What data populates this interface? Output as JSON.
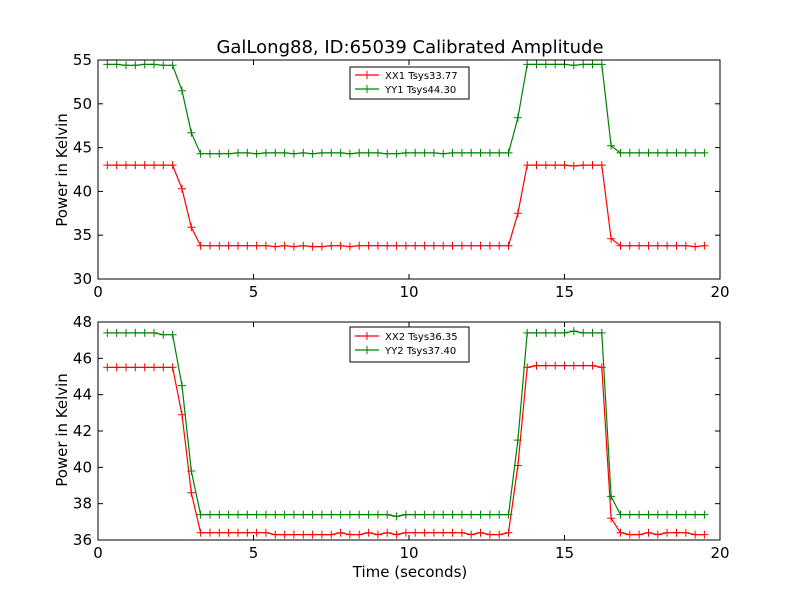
{
  "chart_data": [
    {
      "type": "line",
      "title": "GalLong88, ID:65039 Calibrated Amplitude",
      "xlabel": "",
      "ylabel": "Power in Kelvin",
      "xlim": [
        0,
        20
      ],
      "ylim": [
        30,
        55
      ],
      "xticks": [
        0,
        5,
        10,
        15,
        20
      ],
      "yticks": [
        30,
        35,
        40,
        45,
        50,
        55
      ],
      "legend_position": "top-center",
      "x": [
        0.3,
        0.6,
        0.9,
        1.2,
        1.5,
        1.8,
        2.1,
        2.4,
        2.7,
        3.0,
        3.3,
        3.6,
        3.9,
        4.2,
        4.5,
        4.8,
        5.1,
        5.4,
        5.7,
        6.0,
        6.3,
        6.6,
        6.9,
        7.2,
        7.5,
        7.8,
        8.1,
        8.4,
        8.7,
        9.0,
        9.3,
        9.6,
        9.9,
        10.2,
        10.5,
        10.8,
        11.1,
        11.4,
        11.7,
        12.0,
        12.3,
        12.6,
        12.9,
        13.2,
        13.5,
        13.8,
        14.1,
        14.4,
        14.7,
        15.0,
        15.3,
        15.6,
        15.9,
        16.2,
        16.5,
        16.8,
        17.1,
        17.4,
        17.7,
        18.0,
        18.3,
        18.6,
        18.9,
        19.2,
        19.5
      ],
      "series": [
        {
          "name": "XX1 Tsys33.77",
          "color": "#ff0000",
          "values": [
            43.0,
            43.0,
            43.0,
            43.0,
            43.0,
            43.0,
            43.0,
            43.0,
            40.3,
            35.9,
            33.8,
            33.8,
            33.8,
            33.8,
            33.8,
            33.8,
            33.8,
            33.8,
            33.7,
            33.8,
            33.7,
            33.8,
            33.7,
            33.7,
            33.8,
            33.8,
            33.7,
            33.8,
            33.8,
            33.8,
            33.8,
            33.8,
            33.8,
            33.8,
            33.8,
            33.8,
            33.8,
            33.8,
            33.8,
            33.8,
            33.8,
            33.8,
            33.8,
            33.8,
            37.5,
            43.0,
            43.0,
            43.0,
            43.0,
            43.0,
            42.9,
            43.0,
            43.0,
            43.0,
            34.6,
            33.8,
            33.8,
            33.8,
            33.8,
            33.8,
            33.8,
            33.8,
            33.8,
            33.7,
            33.8
          ]
        },
        {
          "name": "YY1 Tsys44.30",
          "color": "#008000",
          "values": [
            54.5,
            54.5,
            54.4,
            54.4,
            54.5,
            54.5,
            54.4,
            54.4,
            51.5,
            46.7,
            44.3,
            44.3,
            44.3,
            44.3,
            44.4,
            44.4,
            44.3,
            44.4,
            44.4,
            44.4,
            44.3,
            44.4,
            44.3,
            44.4,
            44.4,
            44.4,
            44.3,
            44.4,
            44.4,
            44.4,
            44.3,
            44.3,
            44.4,
            44.4,
            44.4,
            44.4,
            44.3,
            44.4,
            44.4,
            44.4,
            44.4,
            44.4,
            44.4,
            44.4,
            48.4,
            54.5,
            54.5,
            54.5,
            54.5,
            54.5,
            54.4,
            54.5,
            54.5,
            54.5,
            45.2,
            44.4,
            44.4,
            44.4,
            44.4,
            44.4,
            44.4,
            44.4,
            44.4,
            44.4,
            44.4
          ]
        }
      ]
    },
    {
      "type": "line",
      "title": "",
      "xlabel": "Time (seconds)",
      "ylabel": "Power in Kelvin",
      "xlim": [
        0,
        20
      ],
      "ylim": [
        36,
        48
      ],
      "xticks": [
        0,
        5,
        10,
        15,
        20
      ],
      "yticks": [
        36,
        38,
        40,
        42,
        44,
        46,
        48
      ],
      "legend_position": "top-center",
      "x": [
        0.3,
        0.6,
        0.9,
        1.2,
        1.5,
        1.8,
        2.1,
        2.4,
        2.7,
        3.0,
        3.3,
        3.6,
        3.9,
        4.2,
        4.5,
        4.8,
        5.1,
        5.4,
        5.7,
        6.0,
        6.3,
        6.6,
        6.9,
        7.2,
        7.5,
        7.8,
        8.1,
        8.4,
        8.7,
        9.0,
        9.3,
        9.6,
        9.9,
        10.2,
        10.5,
        10.8,
        11.1,
        11.4,
        11.7,
        12.0,
        12.3,
        12.6,
        12.9,
        13.2,
        13.5,
        13.8,
        14.1,
        14.4,
        14.7,
        15.0,
        15.3,
        15.6,
        15.9,
        16.2,
        16.5,
        16.8,
        17.1,
        17.4,
        17.7,
        18.0,
        18.3,
        18.6,
        18.9,
        19.2,
        19.5
      ],
      "series": [
        {
          "name": "XX2 Tsys36.35",
          "color": "#ff0000",
          "values": [
            45.5,
            45.5,
            45.5,
            45.5,
            45.5,
            45.5,
            45.5,
            45.5,
            42.9,
            38.6,
            36.4,
            36.4,
            36.4,
            36.4,
            36.4,
            36.4,
            36.4,
            36.4,
            36.3,
            36.3,
            36.3,
            36.3,
            36.3,
            36.3,
            36.3,
            36.4,
            36.3,
            36.3,
            36.4,
            36.3,
            36.4,
            36.3,
            36.4,
            36.4,
            36.4,
            36.4,
            36.4,
            36.4,
            36.4,
            36.3,
            36.4,
            36.3,
            36.3,
            36.4,
            40.1,
            45.5,
            45.6,
            45.6,
            45.6,
            45.6,
            45.6,
            45.6,
            45.6,
            45.5,
            37.2,
            36.4,
            36.3,
            36.3,
            36.4,
            36.3,
            36.4,
            36.4,
            36.4,
            36.3,
            36.3
          ]
        },
        {
          "name": "YY2 Tsys37.40",
          "color": "#008000",
          "values": [
            47.4,
            47.4,
            47.4,
            47.4,
            47.4,
            47.4,
            47.3,
            47.3,
            44.5,
            39.8,
            37.4,
            37.4,
            37.4,
            37.4,
            37.4,
            37.4,
            37.4,
            37.4,
            37.4,
            37.4,
            37.4,
            37.4,
            37.4,
            37.4,
            37.4,
            37.4,
            37.4,
            37.4,
            37.4,
            37.4,
            37.4,
            37.3,
            37.4,
            37.4,
            37.4,
            37.4,
            37.4,
            37.4,
            37.4,
            37.4,
            37.4,
            37.4,
            37.4,
            37.4,
            41.5,
            47.4,
            47.4,
            47.4,
            47.4,
            47.4,
            47.5,
            47.4,
            47.4,
            47.4,
            38.4,
            37.4,
            37.4,
            37.4,
            37.4,
            37.4,
            37.4,
            37.4,
            37.4,
            37.4,
            37.4
          ]
        }
      ]
    }
  ]
}
